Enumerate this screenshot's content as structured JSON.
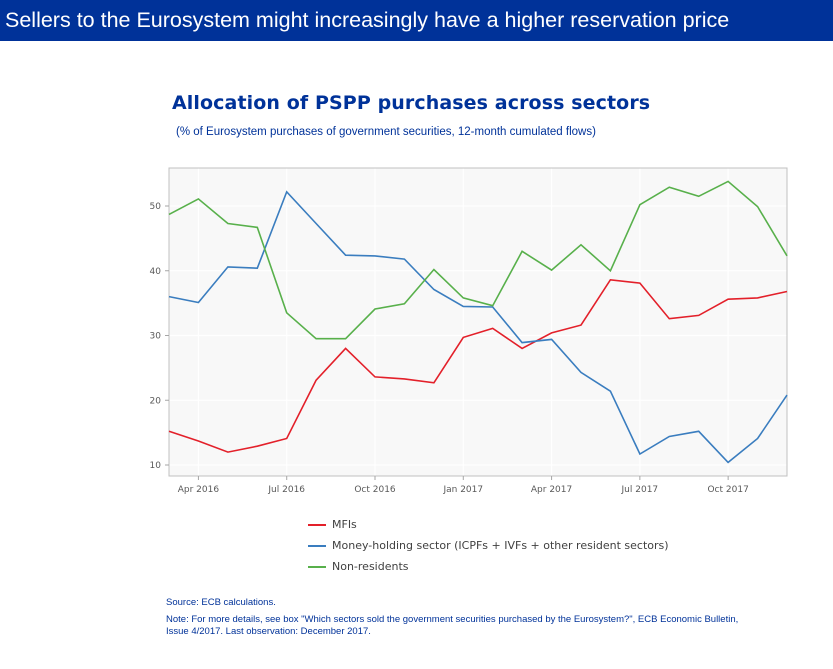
{
  "banner": {
    "title": "Sellers to the Eurosystem  might increasingly have a higher reservation price"
  },
  "chart_data": {
    "type": "line",
    "title": "Allocation of PSPP purchases across sectors",
    "subtitle": "(% of Eurosystem purchases of government securities, 12-month cumulated flows)",
    "xlabel": "",
    "ylabel": "",
    "ylim": [
      8,
      56
    ],
    "yticks": [
      10,
      20,
      30,
      40,
      50
    ],
    "grid": true,
    "legend_position": "bottom",
    "x": [
      "Mar 2016",
      "Apr 2016",
      "May 2016",
      "Jun 2016",
      "Jul 2016",
      "Aug 2016",
      "Sep 2016",
      "Oct 2016",
      "Nov 2016",
      "Dec 2016",
      "Jan 2017",
      "Feb 2017",
      "Mar 2017",
      "Apr 2017",
      "May 2017",
      "Jun 2017",
      "Jul 2017",
      "Aug 2017",
      "Sep 2017",
      "Oct 2017",
      "Nov 2017",
      "Dec 2017"
    ],
    "xticks": [
      {
        "index": 1,
        "label": "Apr 2016"
      },
      {
        "index": 4,
        "label": "Jul 2016"
      },
      {
        "index": 7,
        "label": "Oct 2016"
      },
      {
        "index": 10,
        "label": "Jan 2017"
      },
      {
        "index": 13,
        "label": "Apr 2017"
      },
      {
        "index": 16,
        "label": "Jul 2017"
      },
      {
        "index": 19,
        "label": "Oct 2017"
      }
    ],
    "series": [
      {
        "name": "MFIs",
        "color": "#e3202a",
        "values": [
          15.2,
          13.7,
          12.0,
          12.9,
          14.1,
          23.1,
          28.0,
          23.6,
          23.3,
          22.7,
          29.7,
          31.1,
          28.0,
          30.4,
          31.6,
          38.6,
          38.1,
          32.6,
          33.1,
          35.6,
          35.8,
          36.8
        ]
      },
      {
        "name": "Money-holding sector (ICPFs + IVFs + other resident sectors)",
        "color": "#3a7dbf",
        "values": [
          36.0,
          35.1,
          40.6,
          40.4,
          52.2,
          47.3,
          42.4,
          42.3,
          41.8,
          37.1,
          34.5,
          34.4,
          28.9,
          29.4,
          24.3,
          21.4,
          11.7,
          14.4,
          15.2,
          10.4,
          14.1,
          20.8
        ]
      },
      {
        "name": "Non-residents",
        "color": "#58b04b",
        "values": [
          48.7,
          51.1,
          47.3,
          46.7,
          33.5,
          29.5,
          29.5,
          34.1,
          34.9,
          40.2,
          35.8,
          34.6,
          43.0,
          40.1,
          44.0,
          40.0,
          50.2,
          52.9,
          51.5,
          53.8,
          49.9,
          42.3
        ]
      }
    ]
  },
  "footer": {
    "source": "Source: ECB calculations.",
    "note": "Note: For more details, see box \"Which sectors sold the government securities purchased by the Eurosystem?\", ECB Economic Bulletin, Issue 4/2017. Last observation: December 2017."
  },
  "colors": {
    "banner_bg": "#003299",
    "title": "#003299",
    "plot_bg": "#f8f8f8"
  }
}
